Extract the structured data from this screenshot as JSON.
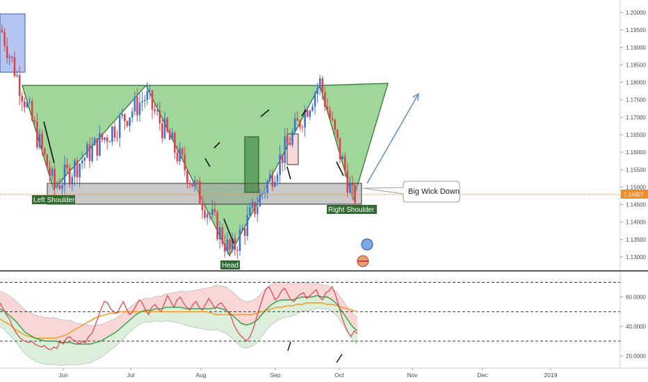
{
  "colors": {
    "up_candle": "#3e73d6",
    "down_candle": "#e0404a",
    "pattern_fill": "#7fc97a",
    "pattern_stroke": "#2e6b2e",
    "neckline_box": "#9e9e9e",
    "label_bg": "#2f6a2f",
    "rsi_line": "#e0404a",
    "ma_line": "#2e9e3e",
    "signal_line": "#f0a030",
    "band_upper_fill": "#f7c9c9",
    "band_lower_fill": "#cfe9cf",
    "current_price_line": "#f08c2a",
    "projection_arrow": "#5a88c8"
  },
  "chart_data": [
    {
      "type": "candlestick",
      "title": "",
      "x_labels": [
        "Jun",
        "Jul",
        "Aug",
        "Sep",
        "Oct",
        "Nov",
        "Dec",
        "2019"
      ],
      "ylim": [
        1.125,
        1.202
      ],
      "y_ticks": [
        "1.20000",
        "1.19500",
        "1.19000",
        "1.18500",
        "1.18000",
        "1.17500",
        "1.17000",
        "1.16500",
        "1.16000",
        "1.15500",
        "1.15000",
        "1.14500",
        "1.14000",
        "1.13500",
        "1.13000"
      ],
      "current_price": "1.14807",
      "annotations": {
        "left_shoulder": "Left Shoulder",
        "head": "Head",
        "right_shoulder": "Right Shoulder",
        "callout": "Big Wick Down"
      },
      "pattern": "inverse head and shoulders",
      "price_path_keypoints": [
        {
          "label": "start",
          "price": 1.195
        },
        {
          "label": "left shoulder low",
          "price": 1.15
        },
        {
          "label": "Jul high",
          "price": 1.176
        },
        {
          "label": "head low",
          "price": 1.131
        },
        {
          "label": "Sep high",
          "price": 1.18
        },
        {
          "label": "right shoulder low",
          "price": 1.147
        },
        {
          "label": "last",
          "price": 1.148
        }
      ]
    },
    {
      "type": "line",
      "title": "",
      "ylim": [
        14,
        74
      ],
      "y_ticks": [
        "60.0000",
        "40.0000",
        "20.0000"
      ],
      "reference_levels": [
        70,
        50,
        30
      ],
      "series": [
        {
          "name": "",
          "kind": "oscillator",
          "values": [
            56,
            52,
            48,
            45,
            40,
            36,
            33,
            31,
            30,
            29,
            30,
            28,
            27,
            26,
            27,
            25,
            24,
            26,
            25,
            30,
            28,
            32,
            33,
            31,
            30,
            28,
            30,
            29,
            33,
            35,
            40,
            46,
            52,
            57,
            56,
            52,
            50,
            49,
            53,
            57,
            52,
            48,
            50,
            54,
            58,
            56,
            51,
            48,
            53,
            55,
            52,
            50,
            56,
            61,
            57,
            53,
            58,
            60,
            56,
            53,
            51,
            55,
            57,
            53,
            51,
            55,
            59,
            56,
            52,
            55,
            56,
            53,
            50,
            47,
            41,
            37,
            34,
            32,
            30,
            33,
            38,
            45,
            52,
            59,
            65,
            67,
            63,
            58,
            60,
            64,
            66,
            62,
            58,
            57,
            60,
            62,
            63,
            59,
            61,
            63,
            65,
            60,
            58,
            63,
            64,
            67,
            62,
            55,
            47,
            41,
            36,
            33,
            37,
            35
          ]
        },
        {
          "name": "",
          "kind": "moving average",
          "values": [
            52,
            50,
            47,
            44,
            40,
            36,
            34,
            32,
            31,
            30,
            30,
            30,
            29,
            29,
            29,
            28,
            28,
            28,
            28,
            29,
            30,
            32,
            34,
            36,
            39,
            42,
            45,
            48,
            50,
            51,
            51,
            52,
            52,
            53,
            53,
            53,
            53,
            52,
            52,
            52,
            52,
            52,
            52,
            53,
            52,
            51,
            48,
            45,
            42,
            41,
            42,
            44,
            48,
            52,
            55,
            57,
            58,
            58,
            58,
            59,
            60,
            60,
            60,
            61,
            60,
            60,
            58,
            55,
            50,
            45,
            40,
            37
          ]
        },
        {
          "name": "",
          "kind": "signal",
          "values": [
            45,
            43,
            41,
            38,
            36,
            34,
            33,
            32,
            32,
            32,
            32,
            32,
            33,
            34,
            36,
            38,
            40,
            42,
            44,
            46,
            47,
            48,
            49,
            49,
            50,
            50,
            50,
            50,
            50,
            50,
            50,
            50,
            50,
            50,
            50,
            50,
            50,
            50,
            50,
            50,
            50,
            50,
            49,
            48,
            48,
            48,
            48,
            48,
            48,
            48,
            48,
            49,
            50,
            51,
            52,
            53,
            53,
            54,
            54,
            55,
            55,
            56,
            56,
            56,
            56,
            55,
            55,
            54,
            53,
            52,
            51,
            50
          ]
        }
      ]
    }
  ]
}
